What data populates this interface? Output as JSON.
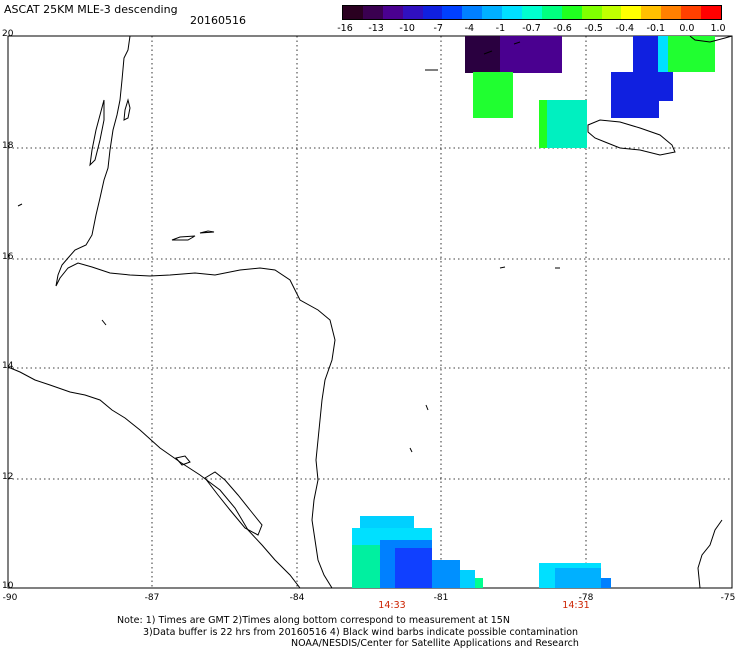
{
  "header": {
    "title": "ASCAT 25KM MLE-3 descending",
    "date": "20160516"
  },
  "colorbar": {
    "tick_labels": [
      "-16",
      "-13",
      "-10",
      "-7",
      "-4",
      "-1",
      "-0.7",
      "-0.6",
      "-0.5",
      "-0.4",
      "-0.1",
      "0.0",
      "1.0"
    ],
    "colors": [
      "#2a0020",
      "#3a0050",
      "#4a0090",
      "#3010c0",
      "#1020e0",
      "#0040ff",
      "#0080ff",
      "#00b0ff",
      "#00e0ff",
      "#00ffd0",
      "#00ff80",
      "#20ff20",
      "#80ff00",
      "#c0ff00",
      "#ffff00",
      "#ffc000",
      "#ff8000",
      "#ff4000",
      "#ff0000"
    ]
  },
  "axes": {
    "lat_labels": [
      "20",
      "18",
      "16",
      "14",
      "12",
      "10"
    ],
    "lon_labels": [
      "-90",
      "-87",
      "-84",
      "-81",
      "-78",
      "-75"
    ]
  },
  "pass_times": [
    "14:33",
    "14:31"
  ],
  "notes": {
    "line1": "Note: 1) Times are GMT 2)Times along bottom correspond to measurement at 15N",
    "line2": "3)Data buffer is 22 hrs from 20160516 4) Black wind barbs indicate possible contamination",
    "line3": "NOAA/NESDIS/Center for Satellite Applications and Research"
  }
}
